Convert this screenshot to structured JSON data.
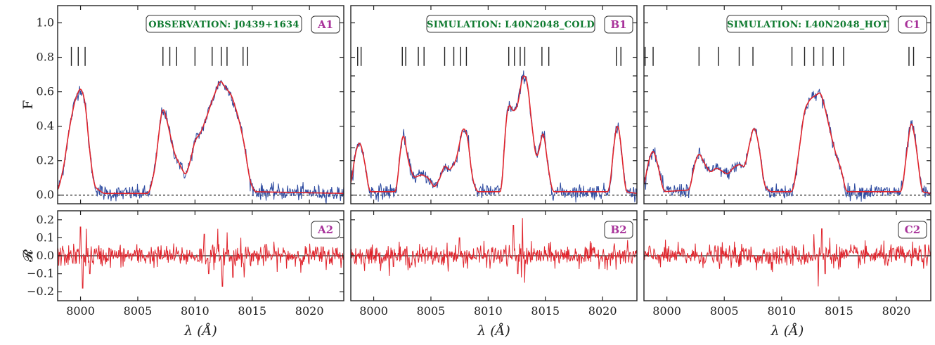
{
  "colors": {
    "observed": "#2d4aa0",
    "model": "#e0242c",
    "residual": "#e0242c",
    "title_text": "#0e7a2f",
    "panel_label": "#a8329a",
    "frame": "#222222"
  },
  "chart_data": [
    {
      "type": "line",
      "panel": "A1",
      "title": "OBSERVATION: J0439+1634",
      "ylabel": "F",
      "xlim": [
        7998,
        8023
      ],
      "ylim": [
        -0.05,
        1.1
      ],
      "xticks": [
        8000,
        8005,
        8010,
        8015,
        8020
      ],
      "yticks": [
        0.0,
        0.2,
        0.4,
        0.6,
        0.8,
        1.0
      ],
      "ytick_labels": [
        "0.0",
        "0.2",
        "0.4",
        "0.6",
        "0.8",
        "1.0"
      ],
      "zero_line": 0.0,
      "line_markers_x": [
        7999.2,
        7999.8,
        8000.4,
        8007.2,
        8007.8,
        8008.4,
        8010.0,
        8011.5,
        8012.3,
        8012.8,
        8014.2,
        8014.6
      ],
      "model_profile": [
        [
          7998,
          0.02
        ],
        [
          7998.5,
          0.15
        ],
        [
          7999.0,
          0.38
        ],
        [
          7999.5,
          0.55
        ],
        [
          8000.0,
          0.63
        ],
        [
          8000.4,
          0.55
        ],
        [
          8000.8,
          0.25
        ],
        [
          8001.2,
          0.05
        ],
        [
          8002,
          0.01
        ],
        [
          8006.0,
          0.01
        ],
        [
          8006.5,
          0.15
        ],
        [
          8007.0,
          0.45
        ],
        [
          8007.2,
          0.52
        ],
        [
          8007.6,
          0.42
        ],
        [
          8008.2,
          0.24
        ],
        [
          8008.8,
          0.16
        ],
        [
          8009.2,
          0.11
        ],
        [
          8009.6,
          0.2
        ],
        [
          8010.0,
          0.32
        ],
        [
          8010.5,
          0.36
        ],
        [
          8011.0,
          0.45
        ],
        [
          8011.5,
          0.55
        ],
        [
          8012.2,
          0.67
        ],
        [
          8012.6,
          0.63
        ],
        [
          8013.2,
          0.58
        ],
        [
          8013.8,
          0.45
        ],
        [
          8014.3,
          0.3
        ],
        [
          8014.8,
          0.08
        ],
        [
          8015.2,
          0.02
        ],
        [
          8023,
          0.01
        ]
      ]
    },
    {
      "type": "line",
      "panel": "B1",
      "title": "SIMULATION: L40N2048_COLD",
      "xlim": [
        7998,
        8023
      ],
      "ylim": [
        -0.05,
        1.1
      ],
      "xticks": [
        8000,
        8005,
        8010,
        8015,
        8020
      ],
      "yticks": [
        0.0,
        0.2,
        0.4,
        0.6,
        0.8,
        1.0
      ],
      "zero_line": 0.0,
      "line_markers_x": [
        7998.6,
        7998.9,
        8002.5,
        8002.8,
        8003.9,
        8004.4,
        8006.2,
        8007.0,
        8007.6,
        8008.1,
        8011.8,
        8012.3,
        8012.8,
        8013.2,
        8014.7,
        8015.3,
        8021.2,
        8021.6
      ],
      "model_profile": [
        [
          7998,
          0.05
        ],
        [
          7998.4,
          0.25
        ],
        [
          7998.8,
          0.32
        ],
        [
          7999.2,
          0.2
        ],
        [
          7999.6,
          0.02
        ],
        [
          8002.0,
          0.02
        ],
        [
          8002.3,
          0.25
        ],
        [
          8002.6,
          0.38
        ],
        [
          8003.0,
          0.2
        ],
        [
          8003.5,
          0.1
        ],
        [
          8004.2,
          0.12
        ],
        [
          8004.8,
          0.1
        ],
        [
          8005.3,
          0.04
        ],
        [
          8005.8,
          0.1
        ],
        [
          8006.2,
          0.18
        ],
        [
          8006.6,
          0.14
        ],
        [
          8007.2,
          0.2
        ],
        [
          8007.8,
          0.4
        ],
        [
          8008.2,
          0.35
        ],
        [
          8008.6,
          0.1
        ],
        [
          8009.0,
          0.02
        ],
        [
          8011.2,
          0.02
        ],
        [
          8011.5,
          0.4
        ],
        [
          8011.8,
          0.54
        ],
        [
          8012.2,
          0.48
        ],
        [
          8012.6,
          0.52
        ],
        [
          8013.0,
          0.7
        ],
        [
          8013.4,
          0.68
        ],
        [
          8013.8,
          0.42
        ],
        [
          8014.2,
          0.2
        ],
        [
          8014.6,
          0.3
        ],
        [
          8014.8,
          0.4
        ],
        [
          8015.2,
          0.18
        ],
        [
          8015.6,
          0.02
        ],
        [
          8020.6,
          0.02
        ],
        [
          8021.0,
          0.3
        ],
        [
          8021.3,
          0.44
        ],
        [
          8021.6,
          0.3
        ],
        [
          8022.0,
          0.02
        ],
        [
          8023,
          0.01
        ]
      ]
    },
    {
      "type": "line",
      "panel": "C1",
      "title": "SIMULATION: L40N2048_HOT",
      "xlim": [
        7998,
        8023
      ],
      "ylim": [
        -0.05,
        1.1
      ],
      "xticks": [
        8000,
        8005,
        8010,
        8015,
        8020
      ],
      "yticks": [
        0.0,
        0.2,
        0.4,
        0.6,
        0.8,
        1.0
      ],
      "zero_line": 0.0,
      "line_markers_x": [
        7998.1,
        7998.8,
        8002.8,
        8004.5,
        8006.3,
        8007.5,
        8010.9,
        8012.0,
        8012.8,
        8013.6,
        8014.5,
        8015.4,
        8021.1,
        8021.5
      ],
      "model_profile": [
        [
          7998,
          0.05
        ],
        [
          7998.4,
          0.2
        ],
        [
          7998.8,
          0.27
        ],
        [
          7999.2,
          0.18
        ],
        [
          7999.7,
          0.02
        ],
        [
          8002.0,
          0.03
        ],
        [
          8002.4,
          0.18
        ],
        [
          8002.8,
          0.25
        ],
        [
          8003.3,
          0.18
        ],
        [
          8003.8,
          0.13
        ],
        [
          8004.3,
          0.16
        ],
        [
          8004.8,
          0.14
        ],
        [
          8005.3,
          0.12
        ],
        [
          8005.8,
          0.16
        ],
        [
          8006.3,
          0.18
        ],
        [
          8006.8,
          0.16
        ],
        [
          8007.2,
          0.3
        ],
        [
          8007.6,
          0.41
        ],
        [
          8008.0,
          0.3
        ],
        [
          8008.5,
          0.05
        ],
        [
          8009,
          0.02
        ],
        [
          8011.0,
          0.02
        ],
        [
          8011.5,
          0.25
        ],
        [
          8012.0,
          0.5
        ],
        [
          8012.5,
          0.56
        ],
        [
          8013.0,
          0.58
        ],
        [
          8013.4,
          0.6
        ],
        [
          8013.8,
          0.5
        ],
        [
          8014.3,
          0.35
        ],
        [
          8014.8,
          0.22
        ],
        [
          8015.2,
          0.15
        ],
        [
          8015.6,
          0.02
        ],
        [
          8020.5,
          0.02
        ],
        [
          8020.9,
          0.25
        ],
        [
          8021.3,
          0.45
        ],
        [
          8021.7,
          0.3
        ],
        [
          8022.2,
          0.02
        ],
        [
          8023,
          0.01
        ]
      ]
    },
    {
      "type": "line",
      "panel": "A2",
      "ylabel": "𝓡",
      "xlabel": "λ (Å)",
      "xlim": [
        7998,
        8023
      ],
      "ylim": [
        -0.25,
        0.25
      ],
      "xticks": [
        8000,
        8005,
        8010,
        8015,
        8020
      ],
      "xtick_labels": [
        "8000",
        "8005",
        "8010",
        "8015",
        "8020"
      ],
      "yticks": [
        -0.2,
        -0.1,
        0.0,
        0.1,
        0.2
      ],
      "ytick_labels": [
        "−0.2",
        "−0.1",
        "0.0",
        "0.1",
        "0.2"
      ],
      "zero_line": 0.0,
      "residual_amplitude": 0.04,
      "residual_spikes": [
        [
          8000.0,
          0.16
        ],
        [
          8000.2,
          -0.18
        ],
        [
          8000.5,
          0.15
        ],
        [
          8000.8,
          -0.1
        ],
        [
          8010.8,
          0.12
        ],
        [
          8011.2,
          -0.1
        ],
        [
          8012.0,
          0.15
        ],
        [
          8012.4,
          -0.17
        ],
        [
          8012.8,
          0.13
        ],
        [
          8013.3,
          -0.12
        ],
        [
          8014.0,
          0.1
        ],
        [
          8014.3,
          -0.12
        ]
      ]
    },
    {
      "type": "line",
      "panel": "B2",
      "xlabel": "λ (Å)",
      "xlim": [
        7998,
        8023
      ],
      "ylim": [
        -0.25,
        0.25
      ],
      "xticks": [
        8000,
        8005,
        8010,
        8015,
        8020
      ],
      "xtick_labels": [
        "8000",
        "8005",
        "8010",
        "8015",
        "8020"
      ],
      "zero_line": 0.0,
      "residual_amplitude": 0.04,
      "residual_spikes": [
        [
          8012.2,
          0.17
        ],
        [
          8012.6,
          -0.1
        ],
        [
          8013.0,
          0.21
        ],
        [
          8013.2,
          -0.15
        ],
        [
          8012.9,
          -0.12
        ],
        [
          8007.5,
          0.1
        ],
        [
          8003.0,
          -0.08
        ]
      ]
    },
    {
      "type": "line",
      "panel": "C2",
      "xlabel": "λ (Å)",
      "xlim": [
        7998,
        8023
      ],
      "ylim": [
        -0.25,
        0.25
      ],
      "xticks": [
        8000,
        8005,
        8010,
        8015,
        8020
      ],
      "xtick_labels": [
        "8000",
        "8005",
        "8010",
        "8015",
        "8020"
      ],
      "zero_line": 0.0,
      "residual_amplitude": 0.04,
      "residual_spikes": [
        [
          8012.8,
          0.12
        ],
        [
          8013.2,
          -0.17
        ],
        [
          8013.5,
          0.15
        ],
        [
          8013.8,
          -0.1
        ],
        [
          8014.2,
          0.1
        ],
        [
          8007.8,
          -0.08
        ]
      ]
    }
  ]
}
